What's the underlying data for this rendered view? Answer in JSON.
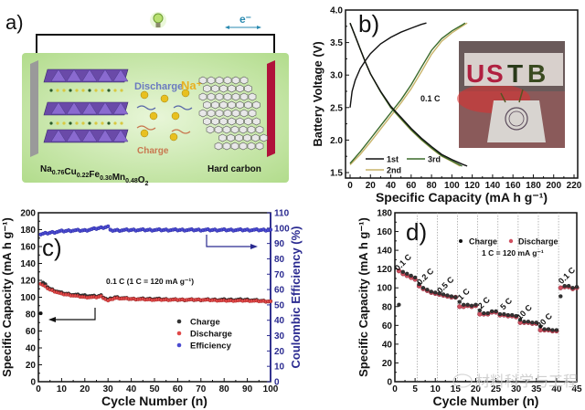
{
  "panel_a": {
    "label": "a)",
    "electron_label": "e⁻",
    "discharge_label": "Discharge",
    "charge_label": "Charge",
    "ion_label": "Na⁺",
    "cathode_formula": {
      "base": "Na",
      "parts": [
        [
          "Na",
          "0.76"
        ],
        [
          "Cu",
          "0.22"
        ],
        [
          "Fe",
          "0.30"
        ],
        [
          "Mn",
          "0.48"
        ],
        [
          "O",
          "2"
        ]
      ]
    },
    "anode_label": "Hard carbon",
    "colors": {
      "background": "#c8e6a8",
      "cathode_collector": "#8a8a8a",
      "anode_collector": "#b0123a",
      "octahedra": "#6a4aa8",
      "ion": "#e8c020"
    }
  },
  "chart_data": [
    {
      "id": "b",
      "panel_label": "b)",
      "type": "line",
      "xlabel": "Specific Capacity (mA h g⁻¹)",
      "ylabel": "Battery Voltage (V)",
      "xlim": [
        0,
        220
      ],
      "ylim": [
        1.5,
        4.0
      ],
      "xticks": [
        0,
        20,
        40,
        60,
        80,
        100,
        120,
        140,
        160,
        180,
        200,
        220
      ],
      "yticks": [
        1.5,
        2.0,
        2.5,
        3.0,
        3.5,
        4.0
      ],
      "annotation": "0.1 C",
      "inset": "photo of LED letters USTB powered by battery",
      "inset_text": [
        "U",
        "S",
        "T",
        "B"
      ],
      "series": [
        {
          "name": "1st",
          "color": "#111111",
          "charge": [
            [
              0,
              2.5
            ],
            [
              2,
              2.75
            ],
            [
              5,
              2.92
            ],
            [
              10,
              3.1
            ],
            [
              15,
              3.22
            ],
            [
              20,
              3.33
            ],
            [
              30,
              3.48
            ],
            [
              40,
              3.58
            ],
            [
              50,
              3.66
            ],
            [
              60,
              3.72
            ],
            [
              70,
              3.78
            ],
            [
              75,
              3.8
            ]
          ],
          "discharge": [
            [
              0,
              3.8
            ],
            [
              5,
              3.6
            ],
            [
              10,
              3.4
            ],
            [
              15,
              3.2
            ],
            [
              20,
              3.02
            ],
            [
              30,
              2.75
            ],
            [
              40,
              2.52
            ],
            [
              50,
              2.35
            ],
            [
              60,
              2.18
            ],
            [
              70,
              2.03
            ],
            [
              80,
              1.9
            ],
            [
              90,
              1.78
            ],
            [
              100,
              1.7
            ],
            [
              110,
              1.63
            ],
            [
              115,
              1.6
            ]
          ]
        },
        {
          "name": "2nd",
          "color": "#c8b46a",
          "charge": [
            [
              0,
              1.62
            ],
            [
              10,
              1.78
            ],
            [
              20,
              1.97
            ],
            [
              30,
              2.17
            ],
            [
              40,
              2.37
            ],
            [
              50,
              2.57
            ],
            [
              60,
              2.79
            ],
            [
              70,
              3.05
            ],
            [
              80,
              3.32
            ],
            [
              90,
              3.52
            ],
            [
              100,
              3.65
            ],
            [
              110,
              3.75
            ],
            [
              115,
              3.8
            ]
          ],
          "discharge": [
            [
              0,
              3.8
            ],
            [
              5,
              3.6
            ],
            [
              10,
              3.4
            ],
            [
              15,
              3.2
            ],
            [
              20,
              3.02
            ],
            [
              30,
              2.74
            ],
            [
              40,
              2.5
            ],
            [
              50,
              2.32
            ],
            [
              60,
              2.15
            ],
            [
              70,
              2.0
            ],
            [
              80,
              1.87
            ],
            [
              90,
              1.75
            ],
            [
              100,
              1.67
            ],
            [
              108,
              1.6
            ]
          ]
        },
        {
          "name": "3rd",
          "color": "#3a6a2a",
          "charge": [
            [
              0,
              1.64
            ],
            [
              10,
              1.82
            ],
            [
              20,
              2.02
            ],
            [
              30,
              2.22
            ],
            [
              40,
              2.42
            ],
            [
              50,
              2.62
            ],
            [
              60,
              2.85
            ],
            [
              70,
              3.12
            ],
            [
              80,
              3.38
            ],
            [
              90,
              3.56
            ],
            [
              100,
              3.68
            ],
            [
              110,
              3.77
            ],
            [
              113,
              3.8
            ]
          ],
          "discharge": [
            [
              0,
              3.8
            ],
            [
              5,
              3.6
            ],
            [
              10,
              3.4
            ],
            [
              15,
              3.2
            ],
            [
              20,
              3.02
            ],
            [
              30,
              2.74
            ],
            [
              40,
              2.5
            ],
            [
              50,
              2.33
            ],
            [
              60,
              2.16
            ],
            [
              70,
              2.01
            ],
            [
              80,
              1.88
            ],
            [
              90,
              1.76
            ],
            [
              100,
              1.68
            ],
            [
              110,
              1.6
            ]
          ]
        }
      ],
      "legend": [
        "1st",
        "2nd",
        "3rd"
      ],
      "legend_placement": "bottom-left"
    },
    {
      "id": "c",
      "panel_label": "c)",
      "type": "scatter",
      "xlabel": "Cycle Number (n)",
      "ylabel": "Specific Capacity (mA h g⁻¹)",
      "y2label": "Coulombic Efficiency (%)",
      "xlim": [
        0,
        100
      ],
      "ylim": [
        0,
        200
      ],
      "y2lim": [
        0,
        110
      ],
      "xticks": [
        0,
        10,
        20,
        30,
        40,
        50,
        60,
        70,
        80,
        90,
        100
      ],
      "yticks": [
        0,
        20,
        40,
        60,
        80,
        100,
        120,
        140,
        160,
        180,
        200
      ],
      "y2ticks": [
        0,
        10,
        20,
        30,
        40,
        50,
        60,
        70,
        80,
        90,
        100,
        110
      ],
      "annotation": "0.1 C (1 C = 120 mA g⁻¹)",
      "legend": [
        "Charge",
        "Discharge",
        "Efficiency"
      ],
      "legend_placement": "center-right",
      "series": [
        {
          "name": "Charge",
          "color": "#111111",
          "axis": "left",
          "first_point": [
            1,
            81
          ],
          "trend": [
            [
              2,
              117
            ],
            [
              5,
              110
            ],
            [
              10,
              105
            ],
            [
              15,
              103
            ],
            [
              20,
              102
            ],
            [
              25,
              101
            ],
            [
              27,
              102
            ],
            [
              30,
              97
            ],
            [
              33,
              100
            ],
            [
              40,
              98
            ],
            [
              50,
              98
            ],
            [
              60,
              97
            ],
            [
              70,
              97
            ],
            [
              80,
              97
            ],
            [
              90,
              97
            ],
            [
              100,
              95
            ]
          ]
        },
        {
          "name": "Discharge",
          "color": "#d03030",
          "axis": "left",
          "trend": [
            [
              1,
              116
            ],
            [
              5,
              109
            ],
            [
              10,
              104
            ],
            [
              15,
              102
            ],
            [
              20,
              100
            ],
            [
              25,
              100
            ],
            [
              27,
              101
            ],
            [
              30,
              96
            ],
            [
              33,
              99
            ],
            [
              40,
              98
            ],
            [
              50,
              97
            ],
            [
              60,
              97
            ],
            [
              70,
              97
            ],
            [
              80,
              96
            ],
            [
              90,
              96
            ],
            [
              100,
              95
            ]
          ]
        },
        {
          "name": "Efficiency",
          "color": "#2a2aa0",
          "axis": "right",
          "trend": [
            [
              1,
              96
            ],
            [
              5,
              97
            ],
            [
              10,
              98
            ],
            [
              15,
              98.5
            ],
            [
              20,
              98.5
            ],
            [
              30,
              101
            ],
            [
              31,
              98.5
            ],
            [
              40,
              98.8
            ],
            [
              50,
              98.8
            ],
            [
              60,
              98.8
            ],
            [
              70,
              98.8
            ],
            [
              80,
              98.8
            ],
            [
              90,
              98.8
            ],
            [
              100,
              98.8
            ]
          ]
        }
      ]
    },
    {
      "id": "d",
      "panel_label": "d)",
      "type": "scatter",
      "xlabel": "Cycle Number (n)",
      "ylabel": "Specific Capacity (mA h g⁻¹)",
      "xlim": [
        0,
        45
      ],
      "ylim": [
        0,
        180
      ],
      "xticks": [
        0,
        5,
        10,
        15,
        20,
        25,
        30,
        35,
        40,
        45
      ],
      "yticks": [
        0,
        20,
        40,
        60,
        80,
        100,
        120,
        140,
        160,
        180
      ],
      "annotation": "1 C = 120 mA g⁻¹",
      "legend": [
        "Charge",
        "Discharge"
      ],
      "legend_placement": "top-center",
      "rate_labels": [
        {
          "label": "0.1 C",
          "x": 2.5,
          "y": 125
        },
        {
          "label": "0.2 C",
          "x": 8,
          "y": 110
        },
        {
          "label": "0.5 C",
          "x": 13,
          "y": 101
        },
        {
          "label": "1 C",
          "x": 17.5,
          "y": 91
        },
        {
          "label": "2 C",
          "x": 22.5,
          "y": 82
        },
        {
          "label": "5 C",
          "x": 28,
          "y": 81
        },
        {
          "label": "10 C",
          "x": 32.5,
          "y": 72
        },
        {
          "label": "20 C",
          "x": 37.5,
          "y": 63
        },
        {
          "label": "0.1 C",
          "x": 43,
          "y": 111
        }
      ],
      "dividers": [
        5.5,
        10.5,
        15.5,
        20.5,
        25.5,
        30.5,
        35.5,
        40.5
      ],
      "series": [
        {
          "name": "Charge",
          "color": "#111111",
          "points": [
            [
              1,
              82
            ],
            [
              2,
              117
            ],
            [
              3,
              115
            ],
            [
              4,
              113
            ],
            [
              5,
              111
            ],
            [
              6,
              104
            ],
            [
              7,
              100
            ],
            [
              8,
              98
            ],
            [
              9,
              96
            ],
            [
              10,
              95
            ],
            [
              11,
              94
            ],
            [
              12,
              93
            ],
            [
              13,
              92
            ],
            [
              14,
              91
            ],
            [
              15,
              90
            ],
            [
              16,
              85
            ],
            [
              17,
              82
            ],
            [
              18,
              82
            ],
            [
              19,
              81
            ],
            [
              20,
              82
            ],
            [
              21,
              76
            ],
            [
              22,
              73
            ],
            [
              23,
              73
            ],
            [
              24,
              75
            ],
            [
              25,
              75
            ],
            [
              26,
              72
            ],
            [
              27,
              72
            ],
            [
              28,
              71
            ],
            [
              29,
              71
            ],
            [
              30,
              70
            ],
            [
              31,
              66
            ],
            [
              32,
              64
            ],
            [
              33,
              64
            ],
            [
              34,
              63
            ],
            [
              35,
              63
            ],
            [
              36,
              59
            ],
            [
              37,
              56
            ],
            [
              38,
              56
            ],
            [
              39,
              55
            ],
            [
              40,
              55
            ],
            [
              41,
              91
            ],
            [
              42,
              102
            ],
            [
              43,
              102
            ],
            [
              44,
              100
            ],
            [
              45,
              101
            ]
          ]
        },
        {
          "name": "Discharge",
          "color": "#c84050",
          "points": [
            [
              1,
              118
            ],
            [
              2,
              115
            ],
            [
              3,
              113
            ],
            [
              4,
              111
            ],
            [
              5,
              109
            ],
            [
              6,
              102
            ],
            [
              7,
              99
            ],
            [
              8,
              97
            ],
            [
              9,
              95
            ],
            [
              10,
              94
            ],
            [
              11,
              93
            ],
            [
              12,
              92
            ],
            [
              13,
              91
            ],
            [
              14,
              90
            ],
            [
              15,
              90
            ],
            [
              16,
              80
            ],
            [
              17,
              80
            ],
            [
              18,
              81
            ],
            [
              19,
              80
            ],
            [
              20,
              81
            ],
            [
              21,
              72
            ],
            [
              22,
              72
            ],
            [
              23,
              72
            ],
            [
              24,
              74
            ],
            [
              25,
              74
            ],
            [
              26,
              71
            ],
            [
              27,
              71
            ],
            [
              28,
              70
            ],
            [
              29,
              70
            ],
            [
              30,
              69
            ],
            [
              31,
              63
            ],
            [
              32,
              63
            ],
            [
              33,
              63
            ],
            [
              34,
              62
            ],
            [
              35,
              62
            ],
            [
              36,
              55
            ],
            [
              37,
              55
            ],
            [
              38,
              55
            ],
            [
              39,
              54
            ],
            [
              40,
              54
            ],
            [
              41,
              100
            ],
            [
              42,
              101
            ],
            [
              43,
              101
            ],
            [
              44,
              99
            ],
            [
              45,
              100
            ]
          ]
        }
      ]
    }
  ],
  "watermark": "材料科学与工程"
}
